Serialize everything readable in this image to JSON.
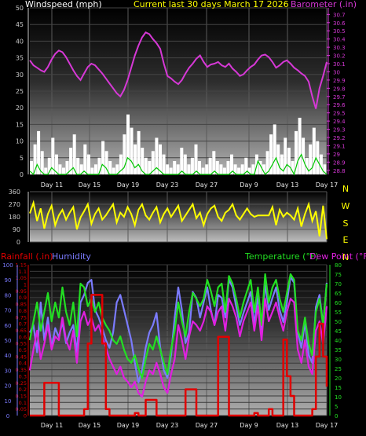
{
  "header": {
    "wind_title": "Windspeed (mph)",
    "center_title": "Current last 30 days March 17 2026",
    "baro_title": "Barometer (.in)"
  },
  "bottom_titles": {
    "rain": "Rainfall (.in)",
    "humidity": "Humidity",
    "temperature": "Temperature (°F)",
    "dewpoint": "Dew Point (°F)"
  },
  "colors": {
    "wind": "#ffffff",
    "gust": "#00c800",
    "barometer": "#d638d6",
    "direction": "#ffff00",
    "rain": "#e00000",
    "humidity": "#7b7bff",
    "temperature": "#22e022",
    "dewpoint": "#e020e0",
    "title_yellow": "#ffff00",
    "axis_text": "#c8c8c8"
  },
  "x_axis_labels": [
    "Day 11",
    "Day 15",
    "Day 19",
    "Day 23",
    "Day 27",
    "Day 9",
    "Day 13",
    "Day 17"
  ],
  "compass_labels": [
    "N",
    "W",
    "S",
    "E",
    "N"
  ],
  "chart_data": [
    {
      "type": "area",
      "name": "wind_and_barometer",
      "y_left": {
        "label": "Windspeed (mph)",
        "ticks": [
          "0",
          "5",
          "10",
          "15",
          "20",
          "25",
          "30",
          "35",
          "40",
          "45",
          "50"
        ],
        "range": [
          0,
          50
        ]
      },
      "y_right": {
        "label": "Barometer (.in)",
        "ticks": [
          "28.8",
          "28.9",
          "29",
          "29.1",
          "29.2",
          "29.3",
          "29.4",
          "29.5",
          "29.6",
          "29.7",
          "29.8",
          "29.9",
          "30",
          "30.1",
          "30.2",
          "30.3",
          "30.4",
          "30.5",
          "30.6",
          "30.7"
        ],
        "range": [
          28.75,
          30.78
        ]
      },
      "series": [
        {
          "name": "Windspeed",
          "values": [
            4,
            9,
            13,
            7,
            2,
            5,
            11,
            6,
            3,
            2,
            4,
            8,
            12,
            5,
            3,
            9,
            6,
            2,
            3,
            5,
            10,
            7,
            4,
            2,
            3,
            6,
            12,
            18,
            14,
            9,
            13,
            8,
            5,
            4,
            7,
            11,
            9,
            6,
            3,
            2,
            4,
            3,
            8,
            6,
            3,
            5,
            9,
            4,
            2,
            3,
            5,
            7,
            4,
            3,
            2,
            4,
            6,
            3,
            2,
            3,
            5,
            2,
            3,
            6,
            4,
            3,
            7,
            12,
            15,
            9,
            6,
            11,
            8,
            4,
            13,
            17,
            11,
            5,
            9,
            14,
            10,
            6,
            3
          ]
        },
        {
          "name": "Gust",
          "values": [
            1,
            0,
            3,
            1,
            0,
            0,
            2,
            1,
            0,
            0,
            0,
            1,
            2,
            0,
            0,
            1,
            0,
            0,
            0,
            0,
            3,
            2,
            0,
            0,
            0,
            1,
            2,
            5,
            4,
            2,
            3,
            1,
            0,
            0,
            1,
            2,
            1,
            0,
            0,
            0,
            0,
            0,
            1,
            0,
            0,
            0,
            1,
            0,
            0,
            0,
            0,
            1,
            0,
            0,
            0,
            0,
            1,
            0,
            0,
            0,
            1,
            0,
            0,
            4,
            2,
            0,
            1,
            3,
            5,
            2,
            1,
            3,
            2,
            0,
            4,
            6,
            3,
            1,
            2,
            5,
            3,
            1,
            0
          ]
        },
        {
          "name": "Barometer",
          "values": [
            30.14,
            30.08,
            30.05,
            30.02,
            30.0,
            30.06,
            30.15,
            30.22,
            30.26,
            30.24,
            30.18,
            30.1,
            30.02,
            29.95,
            29.9,
            29.98,
            30.06,
            30.1,
            30.08,
            30.03,
            29.98,
            29.92,
            29.86,
            29.8,
            29.74,
            29.7,
            29.78,
            29.9,
            30.05,
            30.2,
            30.32,
            30.42,
            30.48,
            30.46,
            30.4,
            30.35,
            30.28,
            30.1,
            29.95,
            29.92,
            29.88,
            29.85,
            29.9,
            29.98,
            30.05,
            30.1,
            30.16,
            30.2,
            30.12,
            30.06,
            30.09,
            30.1,
            30.12,
            30.08,
            30.06,
            30.1,
            30.04,
            30.0,
            29.95,
            29.97,
            30.02,
            30.06,
            30.09,
            30.15,
            30.2,
            30.21,
            30.18,
            30.12,
            30.05,
            30.08,
            30.12,
            30.14,
            30.1,
            30.05,
            30.02,
            29.98,
            29.95,
            29.88,
            29.7,
            29.55,
            29.8,
            29.95,
            30.12
          ]
        }
      ]
    },
    {
      "type": "line",
      "name": "wind_direction",
      "y_left": {
        "ticks": [
          "360",
          "270",
          "180",
          "90",
          "0"
        ],
        "range": [
          0,
          360
        ]
      },
      "series": [
        {
          "name": "Wind Direction",
          "values": [
            205,
            280,
            150,
            240,
            95,
            200,
            260,
            120,
            190,
            230,
            160,
            210,
            250,
            90,
            175,
            220,
            270,
            130,
            200,
            240,
            160,
            190,
            230,
            270,
            140,
            210,
            180,
            250,
            200,
            120,
            230,
            270,
            190,
            160,
            210,
            250,
            140,
            200,
            240,
            180,
            220,
            260,
            150,
            190,
            230,
            270,
            170,
            210,
            120,
            200,
            240,
            260,
            180,
            150,
            210,
            230,
            270,
            190,
            160,
            200,
            240,
            200,
            180,
            190,
            190,
            190,
            190,
            250,
            120,
            230,
            180,
            210,
            190,
            160,
            240,
            110,
            200,
            270,
            150,
            220,
            40,
            260,
            20
          ]
        }
      ]
    },
    {
      "type": "line",
      "name": "rain_humidity_temp_dew",
      "y_left_rain": {
        "ticks": [
          "0",
          "0.05",
          "0.1",
          "0.15",
          "0.2",
          "0.25",
          "0.3",
          "0.35",
          "0.4",
          "0.45",
          "0.5",
          "0.55",
          "0.6",
          "0.65",
          "0.7",
          "0.75",
          "0.8",
          "0.85",
          "0.9",
          "0.95",
          "1",
          "1.05",
          "1.1",
          "1.15"
        ],
        "range": [
          0,
          1.15
        ]
      },
      "y_left_humidity": {
        "ticks": [
          "0",
          "10",
          "20",
          "30",
          "40",
          "50",
          "60",
          "70",
          "80",
          "90",
          "100"
        ],
        "range": [
          0,
          100
        ]
      },
      "y_right_temp": {
        "ticks": [
          "0",
          "5",
          "10",
          "15",
          "20",
          "25",
          "30",
          "35",
          "40",
          "45",
          "50",
          "55",
          "60",
          "65",
          "70",
          "75",
          "80"
        ],
        "range": [
          0,
          80
        ]
      },
      "series": [
        {
          "name": "Rainfall",
          "values": [
            0,
            0,
            0,
            0,
            0.25,
            0.25,
            0.25,
            0.25,
            0,
            0,
            0,
            0,
            0,
            0,
            0,
            0.05,
            0.55,
            0.92,
            0.92,
            0.92,
            0.55,
            0.05,
            0,
            0,
            0,
            0,
            0,
            0,
            0,
            0.02,
            0,
            0,
            0.12,
            0.12,
            0.12,
            0,
            0,
            0,
            0,
            0,
            0,
            0,
            0,
            0.2,
            0.2,
            0.2,
            0,
            0,
            0,
            0,
            0,
            0,
            0.6,
            0.6,
            0.6,
            0,
            0,
            0,
            0,
            0,
            0,
            0,
            0.02,
            0,
            0,
            0,
            0.05,
            0,
            0,
            0,
            0.58,
            0.3,
            0.15,
            0,
            0,
            0,
            0,
            0,
            0.05,
            0.45,
            0.7,
            0.45,
            0.22
          ]
        },
        {
          "name": "Humidity",
          "values": [
            55,
            60,
            42,
            75,
            50,
            65,
            45,
            58,
            52,
            62,
            48,
            55,
            60,
            42,
            75,
            80,
            88,
            90,
            70,
            65,
            58,
            50,
            45,
            55,
            75,
            80,
            70,
            60,
            50,
            35,
            22,
            30,
            45,
            55,
            60,
            68,
            45,
            30,
            25,
            40,
            65,
            85,
            70,
            48,
            55,
            82,
            78,
            65,
            75,
            85,
            70,
            60,
            80,
            78,
            65,
            90,
            85,
            72,
            60,
            68,
            75,
            82,
            60,
            80,
            52,
            88,
            70,
            78,
            85,
            70,
            62,
            75,
            92,
            88,
            55,
            45,
            62,
            40,
            35,
            72,
            80,
            60,
            88
          ]
        },
        {
          "name": "Temperature",
          "values": [
            40,
            50,
            60,
            45,
            55,
            65,
            50,
            60,
            52,
            68,
            55,
            48,
            60,
            42,
            70,
            68,
            58,
            62,
            55,
            60,
            52,
            48,
            45,
            40,
            38,
            42,
            35,
            30,
            28,
            32,
            25,
            20,
            30,
            38,
            35,
            42,
            35,
            28,
            22,
            35,
            45,
            60,
            50,
            42,
            55,
            65,
            62,
            58,
            62,
            72,
            66,
            58,
            68,
            70,
            55,
            74,
            70,
            62,
            52,
            60,
            66,
            72,
            55,
            68,
            48,
            75,
            60,
            68,
            72,
            62,
            55,
            65,
            75,
            72,
            45,
            40,
            52,
            38,
            32,
            55,
            62,
            48,
            70
          ]
        },
        {
          "name": "Dew Point",
          "values": [
            24,
            35,
            45,
            30,
            38,
            48,
            35,
            42,
            40,
            52,
            40,
            35,
            45,
            28,
            50,
            55,
            48,
            52,
            45,
            48,
            42,
            36,
            30,
            26,
            22,
            26,
            20,
            18,
            15,
            18,
            12,
            10,
            18,
            24,
            22,
            28,
            22,
            15,
            12,
            22,
            30,
            48,
            40,
            30,
            42,
            50,
            48,
            45,
            50,
            58,
            55,
            48,
            55,
            58,
            45,
            62,
            58,
            52,
            42,
            50,
            55,
            60,
            45,
            58,
            40,
            62,
            50,
            55,
            60,
            52,
            45,
            55,
            62,
            60,
            35,
            28,
            40,
            26,
            22,
            45,
            50,
            38,
            58
          ]
        }
      ]
    }
  ]
}
